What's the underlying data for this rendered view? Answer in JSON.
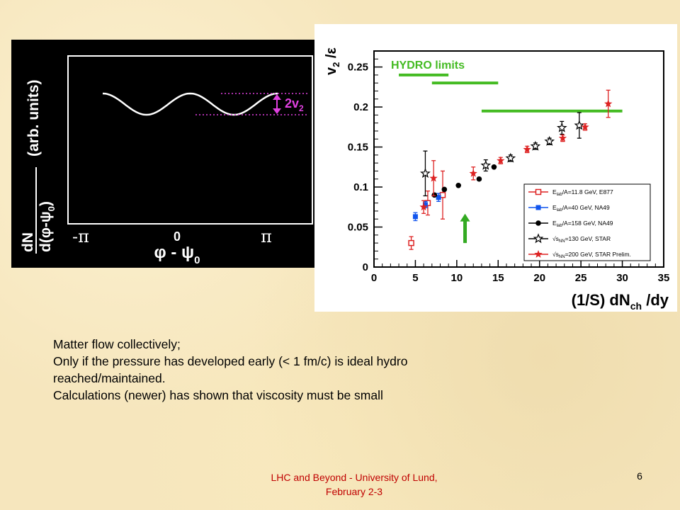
{
  "left_figure": {
    "ylabel_main": "dN",
    "ylabel_denom": "d(φ-ψ",
    "ylabel_denom_sub": "0",
    "ylabel_denom_close": ")",
    "ylabel_units": "(arb. units)",
    "xtick_left": "-π",
    "xtick_mid": "0",
    "xtick_right": "π",
    "xlabel": "φ - ψ",
    "xlabel_sub": "0",
    "amplitude_label": "2v",
    "amplitude_label_sub": "2",
    "colors": {
      "background": "#000000",
      "curve": "#ffffff",
      "annotation": "#e040e0"
    }
  },
  "chart_data": {
    "type": "scatter",
    "title": "",
    "ylabel": "v₂ /ε",
    "xlabel": "(1/S) dNᴄʜ /dy",
    "ylabel_parts": {
      "v": "v",
      "sub": "2",
      "rest": " /ε"
    },
    "xlabel_parts": {
      "pre": "(1/S) dN",
      "sub": "ch",
      "post": " /dy"
    },
    "xlim": [
      0,
      35
    ],
    "ylim": [
      0,
      0.27
    ],
    "xticks": [
      "0",
      "5",
      "10",
      "15",
      "20",
      "25",
      "30",
      "35"
    ],
    "yticks": [
      "0",
      "0.05",
      "0.1",
      "0.15",
      "0.2",
      "0.25"
    ],
    "grid": false,
    "legend_position": "bottom-right",
    "hydro_label": "HYDRO  limits",
    "hydro_limits": [
      {
        "x": [
          3,
          9
        ],
        "y": 0.24
      },
      {
        "x": [
          7,
          15
        ],
        "y": 0.23
      },
      {
        "x": [
          13,
          30
        ],
        "y": 0.195
      }
    ],
    "arrow_x": 11,
    "arrow_y_range": [
      0.03,
      0.065
    ],
    "series": [
      {
        "name": "E_lab/A=11.8 GeV, E877",
        "legend": {
          "pre": "E",
          "sub": "lab",
          "post": "/A=11.8 GeV, E877"
        },
        "color": "#dd2222",
        "marker": "open-square",
        "points": [
          {
            "x": 4.5,
            "y": 0.03,
            "err": 0.008
          },
          {
            "x": 6.5,
            "y": 0.08,
            "err": 0.015
          },
          {
            "x": 8.3,
            "y": 0.09,
            "err": 0.03
          }
        ]
      },
      {
        "name": "E_lab/A=40 GeV, NA49",
        "legend": {
          "pre": "E",
          "sub": "lab",
          "post": "/A=40 GeV, NA49"
        },
        "color": "#1155ee",
        "marker": "filled-square",
        "points": [
          {
            "x": 5.0,
            "y": 0.063,
            "err": 0.005
          },
          {
            "x": 6.2,
            "y": 0.078,
            "err": 0.004
          },
          {
            "x": 7.8,
            "y": 0.087,
            "err": 0.005
          }
        ]
      },
      {
        "name": "E_lab/A=158 GeV, NA49",
        "legend": {
          "pre": "E",
          "sub": "lab",
          "post": "/A=158 GeV, NA49"
        },
        "color": "#000000",
        "marker": "filled-circle",
        "points": [
          {
            "x": 7.3,
            "y": 0.09
          },
          {
            "x": 8.5,
            "y": 0.097
          },
          {
            "x": 10.2,
            "y": 0.102
          },
          {
            "x": 12.7,
            "y": 0.11
          },
          {
            "x": 14.5,
            "y": 0.125
          }
        ]
      },
      {
        "name": "√s_NN=130 GeV, STAR",
        "legend": {
          "pre": "√s",
          "sub": "NN",
          "post": "=130 GeV, STAR"
        },
        "color": "#000000",
        "marker": "open-star",
        "points": [
          {
            "x": 6.2,
            "y": 0.117,
            "err": 0.028
          },
          {
            "x": 13.5,
            "y": 0.127,
            "err": 0.007
          },
          {
            "x": 16.5,
            "y": 0.136,
            "err": 0.004
          },
          {
            "x": 19.5,
            "y": 0.151,
            "err": 0.004
          },
          {
            "x": 21.2,
            "y": 0.157,
            "err": 0.004
          },
          {
            "x": 22.7,
            "y": 0.174,
            "err": 0.008
          },
          {
            "x": 24.8,
            "y": 0.177,
            "err": 0.016
          }
        ]
      },
      {
        "name": "√s_NN=200 GeV, STAR Prelim.",
        "legend": {
          "pre": "√s",
          "sub": "NN",
          "post": "=200 GeV, STAR Prelim."
        },
        "color": "#dd2222",
        "marker": "filled-star",
        "points": [
          {
            "x": 6.0,
            "y": 0.075,
            "err": 0.008
          },
          {
            "x": 7.2,
            "y": 0.111,
            "err": 0.022
          },
          {
            "x": 12.0,
            "y": 0.117,
            "err": 0.008
          },
          {
            "x": 15.3,
            "y": 0.133,
            "err": 0.004
          },
          {
            "x": 18.5,
            "y": 0.147,
            "err": 0.004
          },
          {
            "x": 22.8,
            "y": 0.161,
            "err": 0.004
          },
          {
            "x": 25.5,
            "y": 0.175,
            "err": 0.004
          },
          {
            "x": 28.3,
            "y": 0.204,
            "err": 0.017
          }
        ]
      }
    ]
  },
  "body_text": {
    "line1": "Matter flow collectively;",
    "line2": "Only if the pressure has developed early (< 1 fm/c) is ideal hydro reached/maintained.",
    "line3": "Calculations (newer) has shown that viscosity must be small"
  },
  "footer": {
    "text_line1": "LHC and Beyond - University of Lund,",
    "text_line2": "February 2-3",
    "slide_number": "6"
  }
}
